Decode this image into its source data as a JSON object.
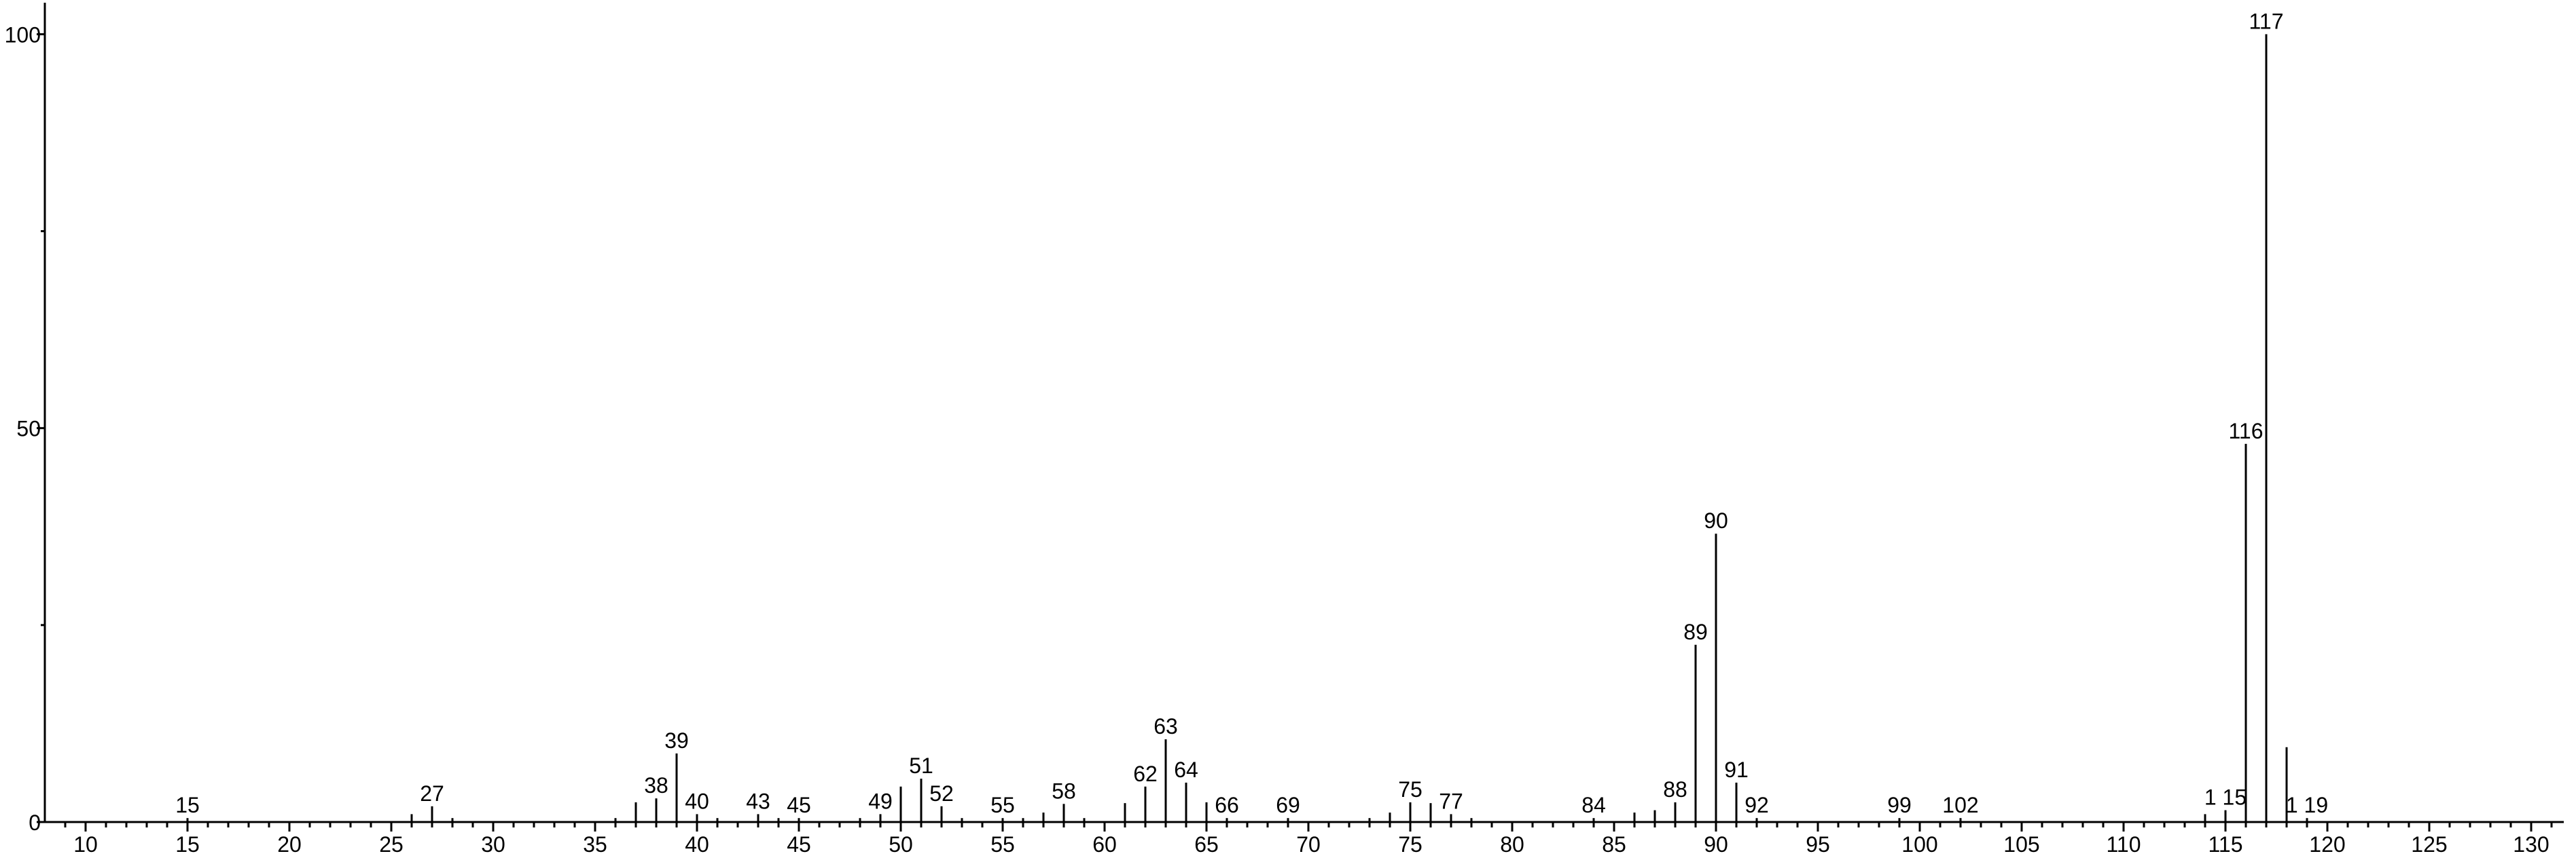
{
  "chart_data": {
    "type": "stem",
    "color": "#000000",
    "x": [
      15,
      26,
      27,
      28,
      36,
      37,
      38,
      39,
      40,
      41,
      43,
      44,
      45,
      48,
      49,
      50,
      51,
      52,
      53,
      55,
      56,
      57,
      58,
      59,
      61,
      62,
      63,
      64,
      65,
      66,
      69,
      73,
      74,
      75,
      76,
      77,
      78,
      84,
      86,
      87,
      88,
      89,
      90,
      91,
      92,
      99,
      102,
      114,
      115,
      116,
      117,
      118,
      119
    ],
    "values": [
      0.5,
      1,
      2,
      0.5,
      0.5,
      2.5,
      3,
      8.7,
      1,
      0.5,
      1,
      0.5,
      0.5,
      0.5,
      1,
      4.5,
      5.5,
      2,
      0.5,
      0.5,
      0.5,
      1.2,
      2.3,
      0.5,
      2.4,
      4.5,
      10.5,
      5,
      2.5,
      0.5,
      0.5,
      0.5,
      1.2,
      2.5,
      2.4,
      1,
      0.5,
      0.5,
      1.2,
      1.5,
      2.5,
      22.5,
      36.6,
      5,
      0.5,
      0.5,
      0.5,
      1,
      1.5,
      48,
      100,
      9.5,
      0.5
    ],
    "point_labels": [
      "15",
      null,
      "27",
      null,
      null,
      null,
      "38",
      "39",
      "40",
      null,
      "43",
      null,
      "45",
      null,
      "49",
      null,
      "51",
      "52",
      null,
      "55",
      null,
      null,
      "58",
      null,
      null,
      "62",
      "63",
      "64",
      null,
      "66",
      "69",
      null,
      null,
      "75",
      null,
      "77",
      null,
      "84",
      null,
      null,
      "88",
      "89",
      "90",
      "91",
      "92",
      "99",
      "102",
      null,
      "1 15",
      "116",
      "117",
      null,
      "1 19"
    ],
    "xlim": [
      8,
      131.6
    ],
    "ylim": [
      0,
      104
    ],
    "xticks": [
      10,
      15,
      20,
      25,
      30,
      35,
      40,
      45,
      50,
      55,
      60,
      65,
      70,
      75,
      80,
      85,
      90,
      95,
      100,
      105,
      110,
      115,
      120,
      125,
      130
    ],
    "xminorticks": [
      9,
      11,
      12,
      13,
      14,
      16,
      17,
      18,
      19,
      21,
      22,
      23,
      24,
      26,
      27,
      28,
      29,
      31,
      32,
      33,
      34,
      36,
      37,
      38,
      39,
      41,
      42,
      43,
      44,
      46,
      47,
      48,
      49,
      51,
      52,
      53,
      54,
      56,
      57,
      58,
      59,
      61,
      62,
      63,
      64,
      66,
      67,
      68,
      69,
      71,
      72,
      73,
      74,
      76,
      77,
      78,
      79,
      81,
      82,
      83,
      84,
      86,
      87,
      88,
      89,
      91,
      92,
      93,
      94,
      96,
      97,
      98,
      99,
      101,
      102,
      103,
      104,
      106,
      107,
      108,
      109,
      111,
      112,
      113,
      114,
      116,
      117,
      118,
      119,
      121,
      122,
      123,
      124,
      126,
      127,
      128,
      129,
      131
    ],
    "yticks": [
      0,
      50,
      100
    ],
    "yminorticks": [
      25,
      75
    ]
  }
}
